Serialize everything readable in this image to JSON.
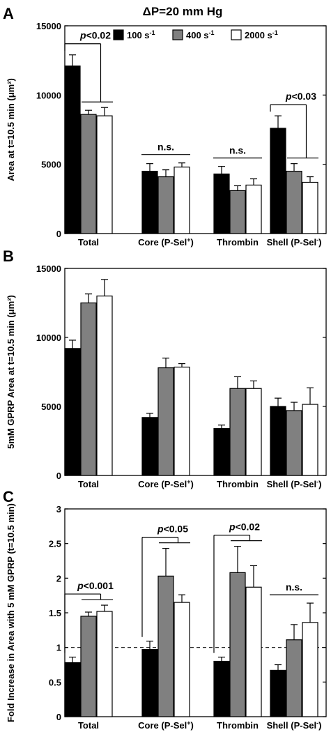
{
  "figure": {
    "title": "ΔP=20 mm Hg",
    "legend": [
      {
        "label": "100 s",
        "sup": "-1",
        "color": "#000000"
      },
      {
        "label": "400 s",
        "sup": "-1",
        "color": "#808080"
      },
      {
        "label": "2000 s",
        "sup": "-1",
        "color": "#ffffff"
      }
    ]
  },
  "chart_data": [
    {
      "panel": "A",
      "type": "bar",
      "ylabel": "Area at t=10.5 min (μm²)",
      "ylim": [
        0,
        15000
      ],
      "yticks": [
        "0",
        "5000",
        "10000",
        "15000"
      ],
      "categories": [
        {
          "label": "Total",
          "sup": ""
        },
        {
          "label": "Core (P-Sel",
          "sup": "+",
          "close": ")"
        },
        {
          "label": "Thrombin",
          "sup": ""
        },
        {
          "label": "Shell (P-Sel",
          "sup": "-",
          "close": ")"
        }
      ],
      "series": [
        {
          "name": "100 s-1",
          "values": [
            12100,
            4500,
            4300,
            7600
          ],
          "errors": [
            800,
            550,
            550,
            900
          ]
        },
        {
          "name": "400 s-1",
          "values": [
            8600,
            4100,
            3100,
            4500
          ],
          "errors": [
            300,
            500,
            350,
            550
          ]
        },
        {
          "name": "2000 s-1",
          "values": [
            8500,
            4800,
            3500,
            3700
          ],
          "errors": [
            600,
            300,
            450,
            400
          ]
        }
      ],
      "annotations": [
        {
          "text": "p<0.02",
          "cat": 0,
          "type": "sig"
        },
        {
          "text": "n.s.",
          "cat": 1,
          "type": "ns"
        },
        {
          "text": "n.s.",
          "cat": 2,
          "type": "ns"
        },
        {
          "text": "p<0.03",
          "cat": 3,
          "type": "sig"
        }
      ],
      "refline": null
    },
    {
      "panel": "B",
      "type": "bar",
      "ylabel": "5mM GPRP Area at t=10.5 min (μm²)",
      "ylim": [
        0,
        15000
      ],
      "yticks": [
        "0",
        "5000",
        "10000",
        "15000"
      ],
      "categories": [
        {
          "label": "Total",
          "sup": ""
        },
        {
          "label": "Core (P-Sel",
          "sup": "+",
          "close": ")"
        },
        {
          "label": "Thrombin",
          "sup": ""
        },
        {
          "label": "Shell (P-Sel",
          "sup": "-",
          "close": ")"
        }
      ],
      "series": [
        {
          "name": "100 s-1",
          "values": [
            9200,
            4200,
            3400,
            5000
          ],
          "errors": [
            600,
            300,
            250,
            600
          ]
        },
        {
          "name": "400 s-1",
          "values": [
            12500,
            7800,
            6300,
            4700
          ],
          "errors": [
            650,
            700,
            850,
            600
          ]
        },
        {
          "name": "2000 s-1",
          "values": [
            13000,
            7850,
            6300,
            5150
          ],
          "errors": [
            1200,
            250,
            550,
            1200
          ]
        }
      ],
      "annotations": [],
      "refline": null
    },
    {
      "panel": "C",
      "type": "bar",
      "ylabel": "Fold Increase in Area with 5 mM GPRP (t=10.5 min)",
      "ylim": [
        0,
        3
      ],
      "yticks": [
        "0",
        "0.5",
        "1",
        "1.5",
        "2",
        "2.5",
        "3"
      ],
      "categories": [
        {
          "label": "Total",
          "sup": ""
        },
        {
          "label": "Core (P-Sel",
          "sup": "+",
          "close": ")"
        },
        {
          "label": "Thrombin",
          "sup": ""
        },
        {
          "label": "Shell (P-Sel",
          "sup": "-",
          "close": ")"
        }
      ],
      "series": [
        {
          "name": "100 s-1",
          "values": [
            0.78,
            0.97,
            0.8,
            0.67
          ],
          "errors": [
            0.08,
            0.12,
            0.06,
            0.08
          ]
        },
        {
          "name": "400 s-1",
          "values": [
            1.45,
            2.03,
            2.08,
            1.11
          ],
          "errors": [
            0.06,
            0.4,
            0.38,
            0.22
          ]
        },
        {
          "name": "2000 s-1",
          "values": [
            1.52,
            1.65,
            1.87,
            1.36
          ],
          "errors": [
            0.09,
            0.11,
            0.31,
            0.28
          ]
        }
      ],
      "annotations": [
        {
          "text": "p<0.001",
          "cat": 0,
          "type": "sig"
        },
        {
          "text": "p<0.05",
          "cat": 1,
          "type": "sig"
        },
        {
          "text": "p<0.02",
          "cat": 2,
          "type": "sig"
        },
        {
          "text": "n.s.",
          "cat": 3,
          "type": "ns"
        }
      ],
      "refline": 1
    }
  ]
}
